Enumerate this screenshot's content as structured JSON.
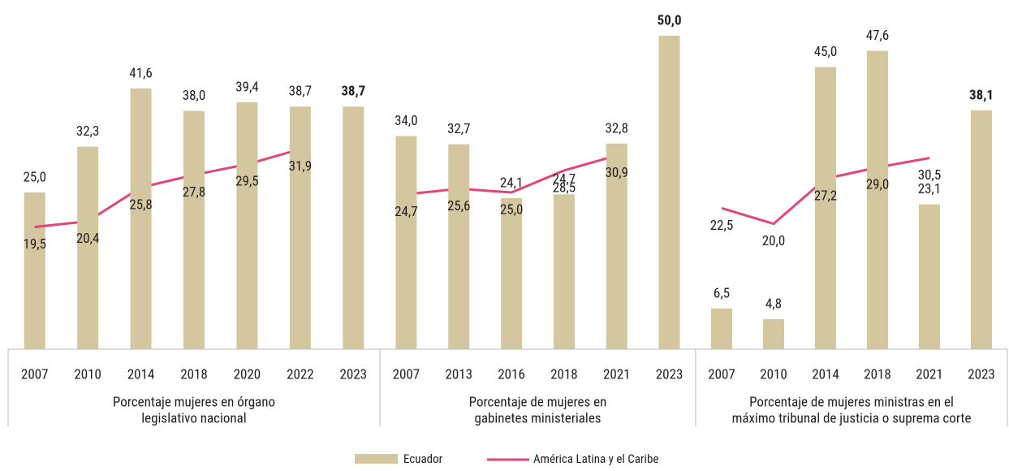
{
  "chart_data": {
    "type": "bar_line",
    "ylim": [
      0,
      50
    ],
    "series": [
      {
        "name": "Ecuador",
        "color": "#d4c69f",
        "kind": "bar"
      },
      {
        "name": "América Latina y el Caribe",
        "color": "#e2457d",
        "kind": "line"
      }
    ],
    "groups": [
      {
        "label": [
          "Porcentaje mujeres en órgano",
          "legislativo nacional"
        ],
        "categories": [
          "2007",
          "2010",
          "2014",
          "2018",
          "2020",
          "2022",
          "2023"
        ],
        "series": [
          {
            "values": [
              25.0,
              32.3,
              41.6,
              38.0,
              39.4,
              38.7,
              38.7
            ],
            "value_labels": [
              "25,0",
              "32,3",
              "41,6",
              "38,0",
              "39,4",
              "38,7",
              "38,7"
            ]
          },
          {
            "values": [
              19.5,
              20.4,
              25.8,
              27.8,
              29.5,
              31.9,
              null
            ],
            "value_labels": [
              "19,5",
              "20,4",
              "25,8",
              "27,8",
              "29,5",
              "31,9",
              null
            ]
          }
        ]
      },
      {
        "label": [
          "Porcentaje de mujeres en",
          "gabinetes ministeriales"
        ],
        "categories": [
          "2007",
          "2013",
          "2016",
          "2018",
          "2021",
          "2023"
        ],
        "series": [
          {
            "values": [
              34.0,
              32.7,
              24.1,
              24.7,
              32.8,
              50.0
            ],
            "value_labels": [
              "34,0",
              "32,7",
              "24,1",
              "24,7",
              "32,8",
              "50,0"
            ]
          },
          {
            "values": [
              24.7,
              25.6,
              25.0,
              28.5,
              30.9,
              null
            ],
            "value_labels": [
              "24,7",
              "25,6",
              "25,0",
              "28,5",
              "30,9",
              null
            ]
          }
        ]
      },
      {
        "label": [
          "Porcentaje de mujeres ministras en el",
          "máximo tribunal de justicia o suprema corte"
        ],
        "categories": [
          "2007",
          "2010",
          "2014",
          "2018",
          "2021",
          "2023"
        ],
        "series": [
          {
            "values": [
              6.5,
              4.8,
              45.0,
              47.6,
              23.1,
              38.1
            ],
            "value_labels": [
              "6,5",
              "4,8",
              "45,0",
              "47,6",
              "23,1",
              "38,1"
            ]
          },
          {
            "values": [
              22.5,
              20.0,
              27.2,
              29.0,
              30.5,
              null
            ],
            "value_labels": [
              "22,5",
              "20,0",
              "27,2",
              "29,0",
              "30,5",
              null
            ]
          }
        ]
      }
    ]
  }
}
